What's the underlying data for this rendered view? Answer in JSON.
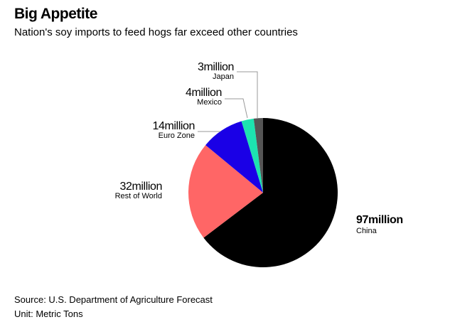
{
  "header": {
    "title": "Big Appetite",
    "subtitle": "Nation's soy imports to feed hogs far exceed other countries"
  },
  "chart_data": {
    "type": "pie",
    "title": "Big Appetite",
    "subtitle": "Nation's soy imports to feed hogs far exceed other countries",
    "unit": "Metric Tons",
    "slices": [
      {
        "label": "China",
        "value": 97,
        "value_label": "97million",
        "color": "#000000"
      },
      {
        "label": "Rest of World",
        "value": 32,
        "value_label": "32million",
        "color": "#ff6666"
      },
      {
        "label": "Euro Zone",
        "value": 14,
        "value_label": "14million",
        "color": "#1a00e6"
      },
      {
        "label": "Mexico",
        "value": 4,
        "value_label": "4million",
        "color": "#1de3b0"
      },
      {
        "label": "Japan",
        "value": 3,
        "value_label": "3million",
        "color": "#555555"
      }
    ]
  },
  "footer": {
    "source": "Source: U.S. Department of Agriculture Forecast",
    "unit": "Unit: Metric Tons"
  }
}
